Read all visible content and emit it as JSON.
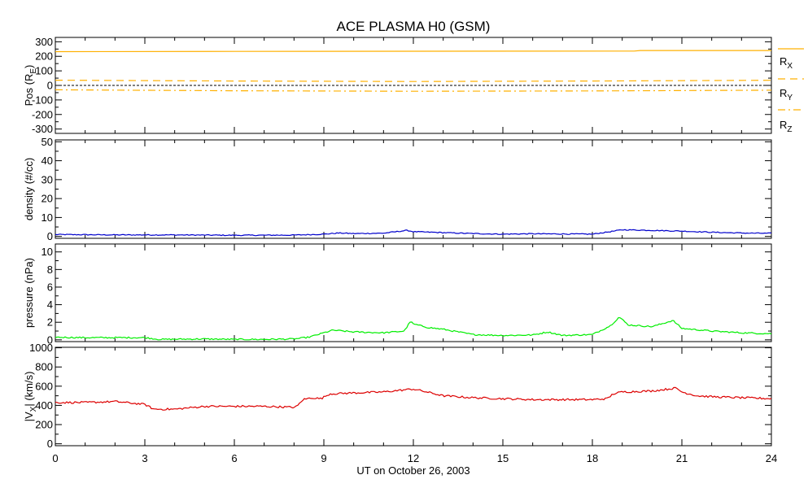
{
  "title": "ACE PLASMA H0 (GSM)",
  "xlabel": "UT on October 26, 2003",
  "x_ticks": [
    0,
    3,
    6,
    9,
    12,
    15,
    18,
    21,
    24
  ],
  "x_range": [
    0,
    24
  ],
  "colors": {
    "position": "#FFB000",
    "density": "#0000CC",
    "pressure": "#00EE00",
    "velocity": "#DD0000",
    "axis": "#000000"
  },
  "chart_data": [
    {
      "type": "line",
      "ylabel": "Pos (R",
      "ylabel_sub": "E",
      "ylim": [
        -330,
        330
      ],
      "yticks": [
        -300,
        -200,
        -100,
        0,
        100,
        200,
        300
      ],
      "zero_line": true,
      "series": [
        {
          "name": "R",
          "sub": "X",
          "style": "solid",
          "x": [
            0,
            6,
            12,
            19.4,
            19.6,
            24
          ],
          "y": [
            232,
            234,
            235,
            236,
            240,
            240
          ]
        },
        {
          "name": "R",
          "sub": "Y",
          "style": "dashed",
          "x": [
            0,
            6,
            12,
            18,
            24
          ],
          "y": [
            36,
            30,
            27,
            30,
            35
          ]
        },
        {
          "name": "R",
          "sub": "Z",
          "style": "dashdot",
          "x": [
            0,
            6,
            12,
            18,
            24
          ],
          "y": [
            -30,
            -37,
            -40,
            -38,
            -33
          ]
        }
      ]
    },
    {
      "type": "line",
      "ylabel": "density (#/cc)",
      "ylim": [
        -1,
        51
      ],
      "yticks": [
        0,
        10,
        20,
        30,
        40,
        50
      ],
      "series": [
        {
          "name": "density",
          "x": [
            0,
            2,
            4,
            6,
            8,
            9,
            9.5,
            10,
            11,
            11.8,
            12,
            13,
            14,
            15,
            16,
            17,
            18,
            18.6,
            19,
            20,
            21,
            22,
            23,
            24
          ],
          "y": [
            1,
            0.8,
            0.8,
            0.6,
            0.7,
            1.2,
            1.8,
            1.5,
            1.7,
            3.2,
            2.5,
            2,
            1.5,
            1.2,
            1.4,
            1.3,
            1.2,
            2.5,
            3.5,
            3.2,
            2.8,
            2.2,
            1.8,
            1.6
          ]
        }
      ]
    },
    {
      "type": "line",
      "ylabel": "pressure (nPa)",
      "ylim": [
        -0.2,
        10.9
      ],
      "yticks": [
        0,
        2,
        4,
        6,
        8,
        10
      ],
      "series": [
        {
          "name": "pressure",
          "x": [
            0,
            1,
            2,
            3,
            3.5,
            5,
            6,
            7,
            8,
            8.5,
            9,
            9.3,
            10,
            11,
            11.7,
            11.9,
            12,
            12.5,
            13,
            14,
            15,
            16,
            16.5,
            17,
            18,
            18.6,
            18.9,
            19.2,
            20,
            20.7,
            21,
            22,
            23,
            24
          ],
          "y": [
            0.3,
            0.25,
            0.25,
            0.25,
            0.05,
            0.1,
            0.05,
            0.05,
            0.1,
            0.3,
            0.8,
            1.1,
            0.9,
            0.8,
            1.0,
            2.1,
            1.8,
            1.4,
            1.2,
            0.6,
            0.5,
            0.55,
            0.9,
            0.5,
            0.6,
            1.6,
            2.6,
            1.7,
            1.5,
            2.2,
            1.3,
            1.0,
            0.8,
            0.7
          ]
        }
      ]
    },
    {
      "type": "line",
      "ylabel": "|V",
      "ylabel_sub": "X",
      "ylabel_tail": "| (km/s)",
      "ylim": [
        -20,
        1005
      ],
      "yticks": [
        0,
        200,
        400,
        600,
        800,
        1000
      ],
      "series": [
        {
          "name": "|Vx|",
          "x": [
            0,
            1,
            2,
            3,
            3.3,
            4,
            5,
            6,
            7,
            8,
            8.1,
            8.3,
            8.6,
            8.9,
            9.2,
            10,
            11,
            11.8,
            12,
            12.3,
            13,
            14,
            15,
            16,
            17,
            18,
            18.5,
            18.7,
            19,
            20,
            20.8,
            21,
            21.5,
            22,
            23,
            24
          ],
          "y": [
            430,
            430,
            440,
            410,
            360,
            360,
            390,
            390,
            390,
            380,
            390,
            460,
            480,
            470,
            520,
            530,
            540,
            565,
            570,
            550,
            500,
            480,
            470,
            460,
            460,
            460,
            470,
            520,
            540,
            550,
            580,
            540,
            500,
            490,
            480,
            470
          ]
        }
      ]
    }
  ]
}
